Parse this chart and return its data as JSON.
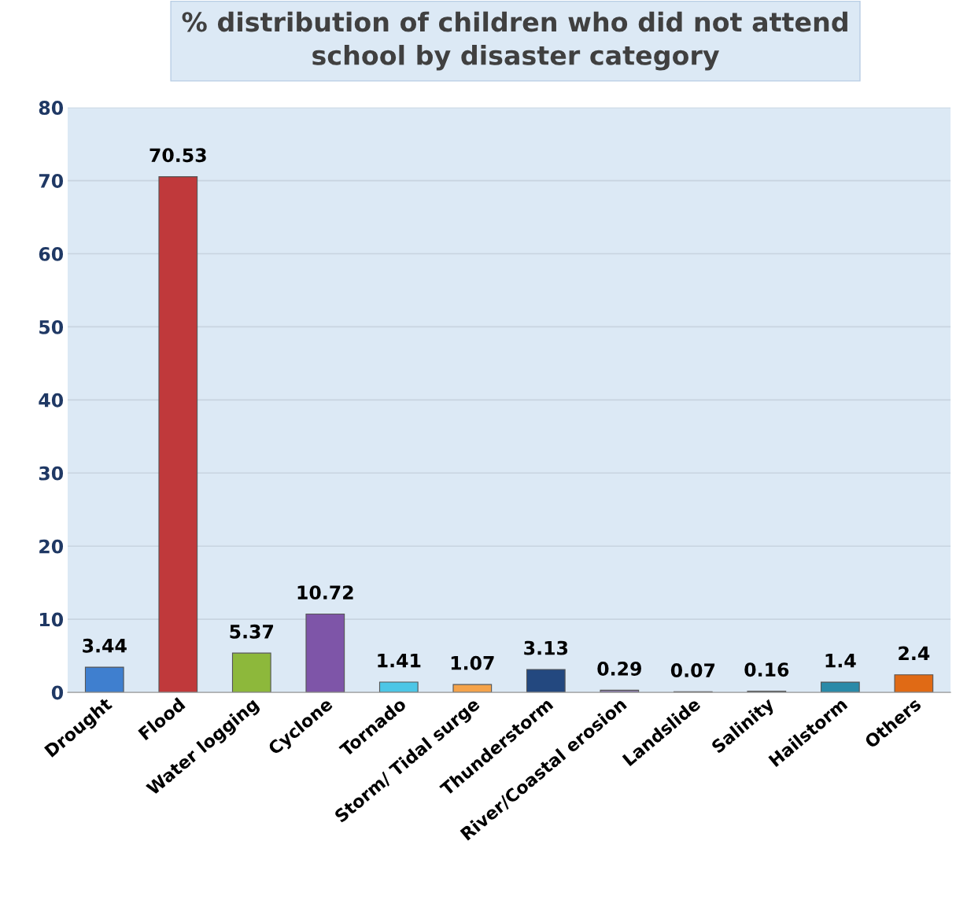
{
  "chart_data": {
    "type": "bar",
    "title": "% distribution of children who did not attend\nschool by disaster category",
    "categories": [
      "Drought",
      "Flood",
      "Water logging",
      "Cyclone",
      "Tornado",
      "Storm/ Tidal surge",
      "Thunderstorm",
      "River/Coastal erosion",
      "Landslide",
      "Salinity",
      "Hailstorm",
      "Others"
    ],
    "values": [
      3.44,
      70.53,
      5.37,
      10.72,
      1.41,
      1.07,
      3.13,
      0.29,
      0.07,
      0.16,
      1.4,
      2.4
    ],
    "colors": [
      "#3f7fcf",
      "#c0393b",
      "#8db83b",
      "#7e55a8",
      "#4cc6e6",
      "#f5a34a",
      "#23487f",
      "#8d7cae",
      "#a6a6a6",
      "#8fa8c8",
      "#2a8aa8",
      "#e06a15"
    ],
    "ylim": [
      0,
      80
    ],
    "yticks": [
      0,
      10,
      20,
      30,
      40,
      50,
      60,
      70,
      80
    ],
    "grid": "y",
    "data_labels": true,
    "legend": false
  }
}
